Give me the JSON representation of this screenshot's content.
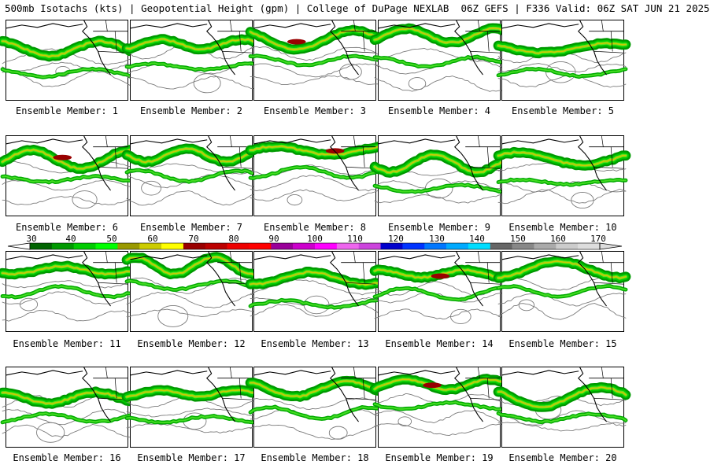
{
  "title": "500mb Isotachs (kts) | Geopotential Height (gpm) | College of DuPage NEXLAB  06Z GEFS | F336 Valid: 06Z SAT JUN 21 2025",
  "colorbar": {
    "labels": [
      "30",
      "40",
      "50",
      "60",
      "70",
      "80",
      "90",
      "100",
      "110",
      "120",
      "130",
      "140",
      "150",
      "160",
      "170"
    ],
    "colors": [
      "#006400",
      "#009900",
      "#00cc00",
      "#00ff00",
      "#999900",
      "#cccc00",
      "#ffff00",
      "#990000",
      "#bb0000",
      "#ee0000",
      "#ff0000",
      "#990099",
      "#cc00cc",
      "#ff00ff",
      "#ee66ee",
      "#cc44dd",
      "#0000cc",
      "#0033ff",
      "#0077ff",
      "#00aaff",
      "#00ddff",
      "#666666",
      "#888888",
      "#aaaaaa",
      "#cccccc",
      "#dddddd"
    ]
  },
  "panels": [
    {
      "label": "Ensemble Member: 1"
    },
    {
      "label": "Ensemble Member: 2"
    },
    {
      "label": "Ensemble Member: 3"
    },
    {
      "label": "Ensemble Member: 4"
    },
    {
      "label": "Ensemble Member: 5"
    },
    {
      "label": "Ensemble Member: 6"
    },
    {
      "label": "Ensemble Member: 7"
    },
    {
      "label": "Ensemble Member: 8"
    },
    {
      "label": "Ensemble Member: 9"
    },
    {
      "label": "Ensemble Member: 10"
    },
    {
      "label": "Ensemble Member: 11"
    },
    {
      "label": "Ensemble Member: 12"
    },
    {
      "label": "Ensemble Member: 13"
    },
    {
      "label": "Ensemble Member: 14"
    },
    {
      "label": "Ensemble Member: 15"
    },
    {
      "label": "Ensemble Member: 16"
    },
    {
      "label": "Ensemble Member: 17"
    },
    {
      "label": "Ensemble Member: 18"
    },
    {
      "label": "Ensemble Member: 19"
    },
    {
      "label": "Ensemble Member: 20"
    }
  ]
}
